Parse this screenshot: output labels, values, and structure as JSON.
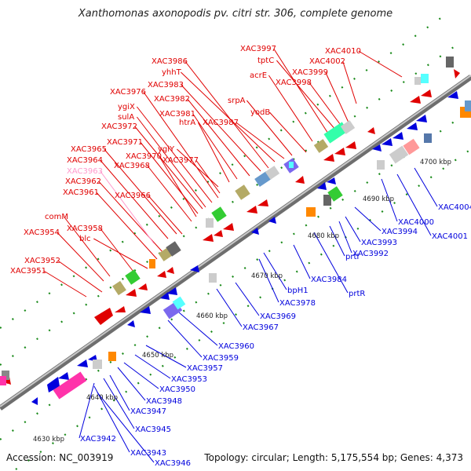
{
  "title": "Xanthomonas axonopodis pv. citri str. 306, complete genome",
  "accession": "Accession: NC_003919",
  "summary": "Topology: circular; Length: 5,175,554 bp; Genes: 4,373",
  "colors": {
    "forward_label": "#e00000",
    "reverse_label": "#0000dd",
    "highlight_label": "#ff99cc",
    "backbone": "#909090"
  },
  "kbp_labels": [
    "4630 kbp",
    "4640 kbp",
    "4650 kbp",
    "4660 kbp",
    "4670 kbp",
    "4680 kbp",
    "4690 kbp",
    "4700 kbp"
  ],
  "forward_labels": [
    "XAC3951",
    "XAC3952",
    "XAC3954",
    "comM",
    "XAC3958",
    "blc",
    "XAC3961",
    "XAC3962",
    "XAC3963",
    "XAC3964",
    "XAC3965",
    "XAC3966",
    "XAC3968",
    "XAC3970",
    "XAC3971",
    "XAC3972",
    "sulA",
    "ygiX",
    "XAC3976",
    "XAC3977",
    "ygiY",
    "htrA",
    "XAC3981",
    "XAC3982",
    "XAC3983",
    "XAC3986",
    "yhhT",
    "XAC3987",
    "srpA",
    "yodB",
    "acrE",
    "XAC3997",
    "tptC",
    "XAC3998",
    "XAC3999",
    "XAC4002",
    "XAC4010"
  ],
  "reverse_labels": [
    "XAC3942",
    "XAC3943",
    "XAC3945",
    "XAC3946",
    "XAC3947",
    "XAC3948",
    "XAC3950",
    "XAC3953",
    "XAC3957",
    "XAC3959",
    "XAC3960",
    "XAC3967",
    "XAC3969",
    "XAC3978",
    "bpH1",
    "XAC3984",
    "prtR",
    "prtI",
    "XAC3992",
    "XAC3993",
    "XAC3994",
    "XAC4000",
    "XAC4001",
    "XAC4004"
  ]
}
